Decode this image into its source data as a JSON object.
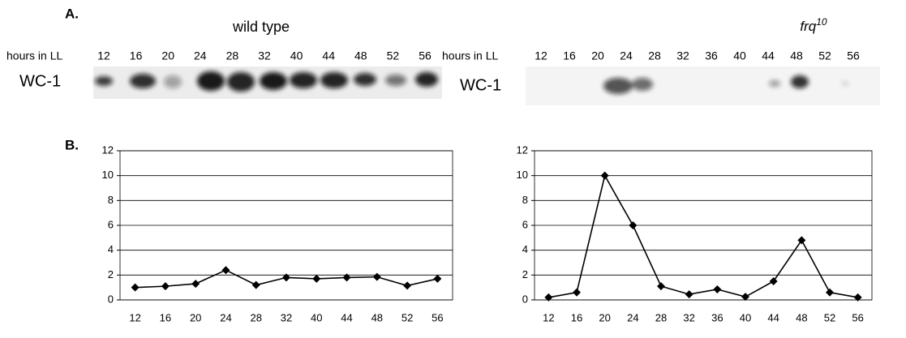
{
  "panel_a": {
    "label": "A.",
    "blots": [
      {
        "title": "wild type",
        "row_label": "hours in LL",
        "band_label": "WC-1",
        "lanes": [
          "12",
          "16",
          "20",
          "24",
          "28",
          "32",
          "40",
          "44",
          "48",
          "52",
          "56"
        ]
      },
      {
        "title": "frq",
        "title_sup": "10",
        "row_label": "hours in LL",
        "band_label": "WC-1",
        "lanes": [
          "12",
          "16",
          "20",
          "24",
          "28",
          "32",
          "36",
          "40",
          "44",
          "48",
          "52",
          "56"
        ]
      }
    ]
  },
  "panel_b": {
    "label": "B."
  },
  "chart_data": [
    {
      "type": "line",
      "categories": [
        "12",
        "16",
        "20",
        "24",
        "28",
        "32",
        "40",
        "44",
        "48",
        "52",
        "56"
      ],
      "values": [
        1.0,
        1.1,
        1.3,
        2.4,
        1.2,
        1.8,
        1.7,
        1.8,
        1.85,
        1.15,
        1.7
      ],
      "color": "#000000",
      "ylim": [
        0,
        12
      ],
      "yticks": [
        0,
        2,
        4,
        6,
        8,
        10,
        12
      ],
      "grid": true
    },
    {
      "type": "line",
      "categories": [
        "12",
        "16",
        "20",
        "24",
        "28",
        "32",
        "36",
        "40",
        "44",
        "48",
        "52",
        "56"
      ],
      "values": [
        0.2,
        0.6,
        10,
        6,
        1.1,
        0.45,
        0.85,
        0.25,
        1.5,
        4.8,
        0.6,
        0.2
      ],
      "color": "#000000",
      "ylim": [
        0,
        12
      ],
      "yticks": [
        0,
        2,
        4,
        6,
        8,
        10,
        12
      ],
      "grid": true
    }
  ]
}
